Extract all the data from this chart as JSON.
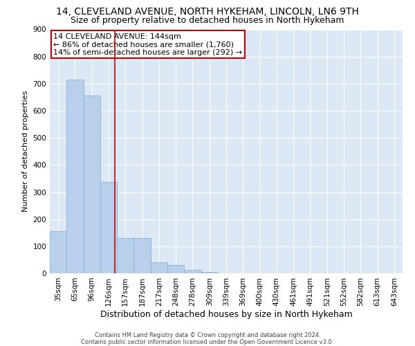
{
  "title1": "14, CLEVELAND AVENUE, NORTH HYKEHAM, LINCOLN, LN6 9TH",
  "title2": "Size of property relative to detached houses in North Hykeham",
  "xlabel": "Distribution of detached houses by size in North Hykeham",
  "ylabel": "Number of detached properties",
  "footer1": "Contains HM Land Registry data © Crown copyright and database right 2024.",
  "footer2": "Contains public sector information licensed under the Open Government Licence v3.0.",
  "categories": [
    "35sqm",
    "65sqm",
    "96sqm",
    "126sqm",
    "157sqm",
    "187sqm",
    "217sqm",
    "248sqm",
    "278sqm",
    "309sqm",
    "339sqm",
    "369sqm",
    "400sqm",
    "430sqm",
    "461sqm",
    "491sqm",
    "521sqm",
    "552sqm",
    "582sqm",
    "613sqm",
    "643sqm"
  ],
  "values": [
    155,
    715,
    655,
    338,
    130,
    130,
    42,
    30,
    12,
    5,
    0,
    0,
    0,
    0,
    0,
    0,
    0,
    0,
    0,
    0,
    0
  ],
  "bar_color": "#b8d0ea",
  "bar_edge_color": "#8ab0d0",
  "background_color": "#dce8f5",
  "annotation_box_color": "#ffffff",
  "annotation_border_color": "#cc0000",
  "vline_color": "#cc0000",
  "vline_x": 3.38,
  "annotation_line1": "14 CLEVELAND AVENUE: 144sqm",
  "annotation_line2": "← 86% of detached houses are smaller (1,760)",
  "annotation_line3": "14% of semi-detached houses are larger (292) →",
  "ylim": [
    0,
    900
  ],
  "yticks": [
    0,
    100,
    200,
    300,
    400,
    500,
    600,
    700,
    800,
    900
  ],
  "title_fontsize": 10,
  "subtitle_fontsize": 9,
  "ylabel_fontsize": 8,
  "xlabel_fontsize": 9,
  "tick_fontsize": 7.5,
  "annotation_fontsize": 8,
  "footer_fontsize": 6
}
